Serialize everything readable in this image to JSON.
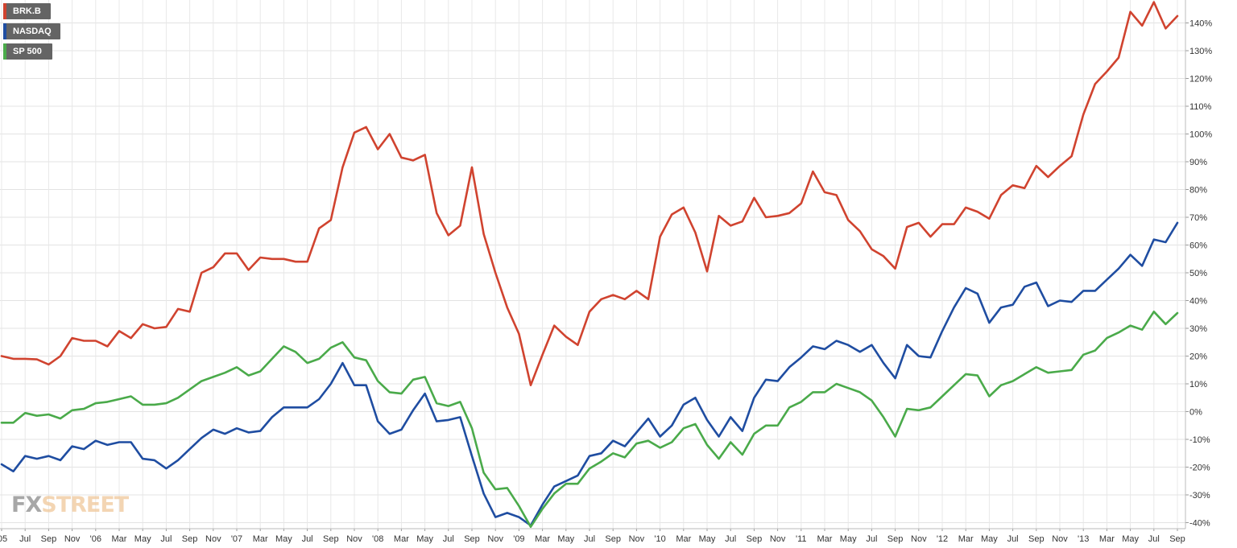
{
  "chart_data": {
    "type": "line",
    "title": "",
    "xlabel": "",
    "ylabel": "",
    "ylim": [
      -42,
      148
    ],
    "y_ticks": [
      -40,
      -30,
      -20,
      -10,
      0,
      10,
      20,
      30,
      40,
      50,
      60,
      70,
      80,
      90,
      100,
      110,
      120,
      130,
      140
    ],
    "y_tick_suffix": "%",
    "y_axis_side": "right",
    "grid": true,
    "legend_position": "top-left",
    "x_ticks": [
      "'05",
      "Jul",
      "Sep",
      "Nov",
      "'06",
      "Mar",
      "May",
      "Jul",
      "Sep",
      "Nov",
      "'07",
      "Mar",
      "May",
      "Jul",
      "Sep",
      "Nov",
      "'08",
      "Mar",
      "May",
      "Jul",
      "Sep",
      "Nov",
      "'09",
      "Mar",
      "May",
      "Jul",
      "Sep",
      "Nov",
      "'10",
      "Mar",
      "May",
      "Jul",
      "Sep",
      "Nov",
      "'11",
      "Mar",
      "May",
      "Jul",
      "Sep",
      "Nov",
      "'12",
      "Mar",
      "May",
      "Jul",
      "Sep",
      "Nov",
      "'13",
      "Mar",
      "May",
      "Jul",
      "Sep"
    ],
    "x_tick_start_month_index": 4,
    "x_tick_step_months": 2,
    "x_start_month_index": 4,
    "series": [
      {
        "name": "BRK.B",
        "color": "#d0432f",
        "values": [
          20,
          19,
          19,
          18.8,
          17,
          20,
          26.5,
          25.5,
          25.5,
          23.5,
          29,
          26.5,
          31.5,
          30,
          30.5,
          37,
          36,
          50,
          52,
          57,
          57,
          51,
          55.5,
          55,
          55,
          54,
          54,
          66,
          69,
          88,
          100.5,
          102.5,
          94.5,
          100,
          91.5,
          90.5,
          92.5,
          71.5,
          63.5,
          67,
          88,
          64,
          50,
          37.5,
          28,
          9.5,
          20.5,
          31,
          27,
          24,
          36,
          40.5,
          42,
          40.5,
          43.5,
          40.5,
          63,
          71,
          73.5,
          64.5,
          50.5,
          70.5,
          67,
          68.5,
          77,
          70,
          70.5,
          71.5,
          75,
          86.5,
          79,
          78,
          69,
          65,
          58.5,
          56,
          51.5,
          66.5,
          68,
          63,
          67.5,
          67.5,
          73.5,
          72,
          69.5,
          78,
          81.5,
          80.5,
          88.5,
          84.5,
          88.5,
          92,
          107,
          118,
          122.5,
          127.5,
          144,
          139,
          147.5,
          138,
          142.5
        ]
      },
      {
        "name": "NASDAQ",
        "color": "#1f4da1",
        "values": [
          -19,
          -21.5,
          -16,
          -17,
          -16,
          -17.5,
          -12.5,
          -13.5,
          -10.5,
          -12,
          -11,
          -11,
          -17,
          -17.5,
          -20.5,
          -17.5,
          -13.5,
          -9.5,
          -6.5,
          -8,
          -6,
          -7.5,
          -7,
          -2,
          1.5,
          1.5,
          1.5,
          4.5,
          10,
          17.5,
          9.5,
          9.5,
          -3.5,
          -8,
          -6.5,
          0.5,
          6.5,
          -3.5,
          -3,
          -2,
          -16,
          -29.5,
          -38,
          -36.5,
          -38,
          -41,
          -33.5,
          -27,
          -25,
          -23,
          -16,
          -15,
          -10.5,
          -12.5,
          -7.5,
          -2.5,
          -9,
          -5,
          2.5,
          5,
          -3,
          -9,
          -2,
          -7,
          5,
          11.5,
          11,
          16,
          19.5,
          23.5,
          22.5,
          25.5,
          24,
          21.5,
          24,
          17.5,
          12,
          24,
          20,
          19.5,
          29,
          37.5,
          44.5,
          42.5,
          32,
          37.5,
          38.5,
          45,
          46.5,
          38,
          40,
          39.5,
          43.5,
          43.5,
          47.5,
          51.5,
          56.5,
          52.5,
          62,
          61,
          68
        ]
      },
      {
        "name": "SP 500",
        "color": "#4aaa4a",
        "values": [
          -4,
          -4,
          -0.5,
          -1.5,
          -1,
          -2.5,
          0.5,
          1,
          3,
          3.5,
          4.5,
          5.5,
          2.5,
          2.5,
          3,
          5,
          8,
          11,
          12.5,
          14,
          16,
          13,
          14.5,
          19,
          23.5,
          21.5,
          17.5,
          19,
          23,
          25,
          19.5,
          18.5,
          11,
          7,
          6.5,
          11.5,
          12.5,
          3,
          2,
          3.5,
          -6,
          -22,
          -28,
          -27.5,
          -34,
          -41.5,
          -35,
          -29.5,
          -26,
          -26,
          -20.5,
          -18,
          -15,
          -16.5,
          -11.5,
          -10.5,
          -13,
          -11,
          -6,
          -4.5,
          -12,
          -17,
          -11,
          -15.5,
          -8,
          -5,
          -5,
          1.5,
          3.5,
          7,
          7,
          10,
          8.5,
          7,
          4,
          -2,
          -9,
          1,
          0.5,
          1.5,
          5.5,
          9.5,
          13.5,
          13,
          5.5,
          9.5,
          11,
          13.5,
          16,
          14,
          14.5,
          15,
          20.5,
          22,
          26.5,
          28.5,
          31,
          29.5,
          36,
          31.5,
          35.5
        ]
      }
    ]
  },
  "legend": {
    "items": [
      {
        "label": "BRK.B",
        "color": "#d0432f"
      },
      {
        "label": "NASDAQ",
        "color": "#1f4da1"
      },
      {
        "label": "SP 500",
        "color": "#4aaa4a"
      }
    ]
  },
  "watermark": {
    "part1": "FX",
    "part2": "STREET",
    "color1": "#8a8a8a",
    "color2": "#f0c89a"
  }
}
